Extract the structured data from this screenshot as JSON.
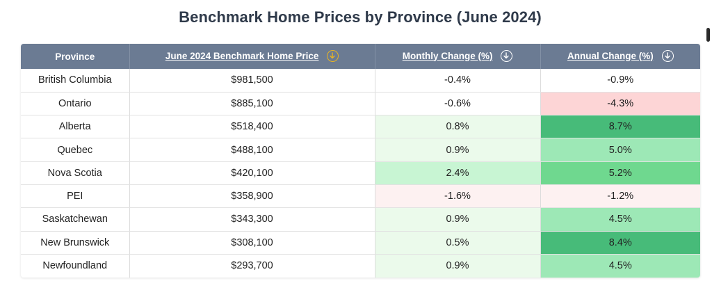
{
  "chart_data": {
    "type": "table",
    "title": "Benchmark Home Prices by Province (June 2024)",
    "columns": [
      "Province",
      "June 2024 Benchmark Home Price",
      "Monthly Change (%)",
      "Annual Change (%)"
    ],
    "rows": [
      {
        "province": "British Columbia",
        "price": "$981,500",
        "monthly": "-0.4%",
        "annual": "-0.9%",
        "monthly_bg": "#ffffff",
        "annual_bg": "#ffffff"
      },
      {
        "province": "Ontario",
        "price": "$885,100",
        "monthly": "-0.6%",
        "annual": "-4.3%",
        "monthly_bg": "#ffffff",
        "annual_bg": "#fdd5d6"
      },
      {
        "province": "Alberta",
        "price": "$518,400",
        "monthly": "0.8%",
        "annual": "8.7%",
        "monthly_bg": "#ebfaeb",
        "annual_bg": "#47bb79"
      },
      {
        "province": "Quebec",
        "price": "$488,100",
        "monthly": "0.9%",
        "annual": "5.0%",
        "monthly_bg": "#ebfaeb",
        "annual_bg": "#9de8b6"
      },
      {
        "province": "Nova Scotia",
        "price": "$420,100",
        "monthly": "2.4%",
        "annual": "5.2%",
        "monthly_bg": "#c8f5d3",
        "annual_bg": "#6fd88f"
      },
      {
        "province": "PEI",
        "price": "$358,900",
        "monthly": "-1.6%",
        "annual": "-1.2%",
        "monthly_bg": "#fdf1f1",
        "annual_bg": "#fdf1f1"
      },
      {
        "province": "Saskatchewan",
        "price": "$343,300",
        "monthly": "0.9%",
        "annual": "4.5%",
        "monthly_bg": "#ebfaeb",
        "annual_bg": "#9de8b6"
      },
      {
        "province": "New Brunswick",
        "price": "$308,100",
        "monthly": "0.5%",
        "annual": "8.4%",
        "monthly_bg": "#ebfaeb",
        "annual_bg": "#47bb79"
      },
      {
        "province": "Newfoundland",
        "price": "$293,700",
        "monthly": "0.9%",
        "annual": "4.5%",
        "monthly_bg": "#ebfaeb",
        "annual_bg": "#9de8b6"
      }
    ]
  },
  "colors": {
    "header_bg": "#6b7b93",
    "active_sort": "#e9b422"
  },
  "sort": {
    "active_column": "June 2024 Benchmark Home Price",
    "direction": "descending"
  }
}
